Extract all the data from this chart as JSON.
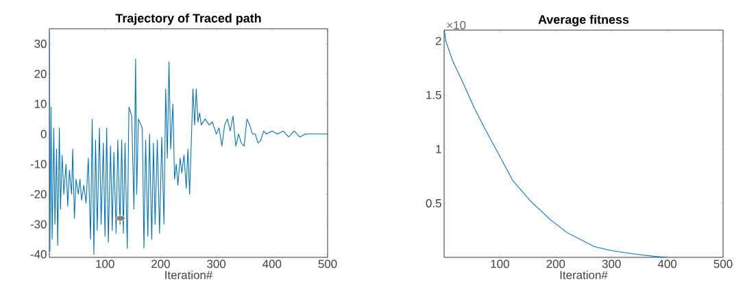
{
  "chart_data": [
    {
      "type": "line",
      "title": "Trajectory of Traced path",
      "xlabel": "Iteration#",
      "xlim": [
        0,
        500
      ],
      "ylim": [
        -41,
        35
      ],
      "xticks": [
        100,
        200,
        300,
        400,
        500
      ],
      "yticks": [
        -40,
        -30,
        -20,
        -10,
        0,
        10,
        20,
        30
      ],
      "series": [
        {
          "color": "#0072bd",
          "x": [
            0,
            1,
            3,
            5,
            8,
            10,
            13,
            15,
            18,
            20,
            23,
            26,
            30,
            33,
            36,
            40,
            42,
            45,
            48,
            52,
            55,
            58,
            62,
            66,
            70,
            74,
            77,
            80,
            83,
            86,
            90,
            93,
            97,
            100,
            103,
            106,
            110,
            113,
            116,
            120,
            123,
            127,
            130,
            133,
            136,
            140,
            143,
            146,
            148,
            152,
            155,
            157,
            160,
            164,
            167,
            170,
            173,
            177,
            180,
            184,
            187,
            190,
            194,
            198,
            202,
            206,
            209,
            212,
            215,
            218,
            222,
            225,
            228,
            231,
            235,
            238,
            242,
            246,
            249,
            252,
            255,
            258,
            261,
            264,
            267,
            270,
            273,
            280,
            287,
            293,
            300,
            305,
            310,
            315,
            320,
            325,
            330,
            335,
            340,
            345,
            350,
            355,
            360,
            365,
            370,
            375,
            380,
            385,
            390,
            400,
            410,
            420,
            430,
            440,
            450,
            460,
            470,
            500
          ],
          "values": [
            34,
            -39,
            9,
            -35,
            2,
            -30,
            -5,
            -37,
            2,
            -25,
            -7,
            -20,
            -10,
            -24,
            -12,
            -20,
            -5,
            -28,
            -15,
            -20,
            -15,
            -22,
            -17,
            -23,
            -8,
            -35,
            5,
            -40,
            -2,
            -32,
            2,
            -30,
            -3,
            -34,
            2,
            -36,
            -4,
            -32,
            -6,
            -33,
            -2,
            -30,
            -2,
            -33,
            -3,
            -38,
            9,
            null,
            6,
            -25,
            25,
            -20,
            5,
            null,
            2,
            -38,
            -2,
            -34,
            0,
            -35,
            -3,
            -30,
            -2,
            -33,
            -1,
            -30,
            15,
            -8,
            24,
            -5,
            10,
            -15,
            -10,
            -17,
            -8,
            -13,
            -7,
            -18,
            -5,
            -20,
            -3,
            15,
            3,
            15,
            4,
            7,
            3,
            5,
            3,
            4,
            0,
            2,
            -4,
            3,
            5,
            1,
            6,
            -4,
            0,
            -3,
            -4,
            5,
            3,
            0,
            0,
            -3,
            -2,
            1,
            0,
            1,
            0,
            1,
            -1,
            1,
            -1,
            0,
            0,
            0
          ]
        },
        {
          "type": "scatter",
          "color": "#808080",
          "marker": "circle",
          "x": [
            128
          ],
          "values": [
            -28
          ]
        }
      ]
    },
    {
      "type": "line",
      "title": "Average fitness",
      "xlabel": "Iteration#",
      "xlim": [
        0,
        500
      ],
      "ylim": [
        0,
        2.1
      ],
      "xticks": [
        100,
        200,
        300,
        400,
        500
      ],
      "yticks": [
        0.5,
        1,
        1.5,
        2
      ],
      "annotations": [
        "×10"
      ],
      "series": [
        {
          "color": "#0072bd",
          "x": [
            0.5,
            3,
            15,
            35,
            54,
            75,
            94,
            123,
            155,
            190,
            220,
            269,
            302,
            342,
            375,
            400
          ],
          "values": [
            2.1,
            2.0,
            1.82,
            1.6,
            1.38,
            1.17,
            0.99,
            0.71,
            0.52,
            0.35,
            0.23,
            0.1,
            0.06,
            0.03,
            0.01,
            0
          ]
        }
      ]
    }
  ]
}
